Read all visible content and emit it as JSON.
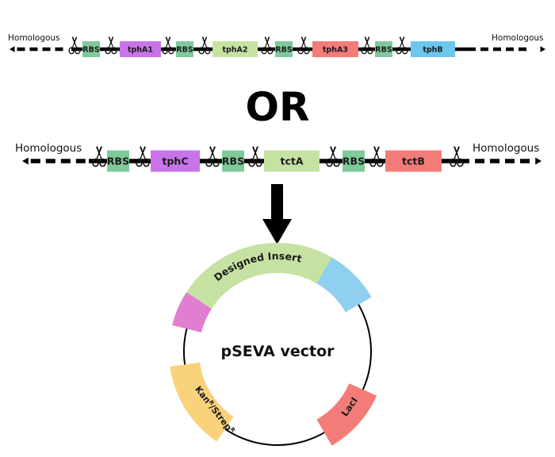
{
  "construct1": {
    "left_label": "Homologous",
    "right_label": "Homologous",
    "parts": [
      {
        "kind": "rbs",
        "label": "RBS",
        "color": "#7fc99a"
      },
      {
        "kind": "gene",
        "label": "tphA1",
        "color": "#c874e8"
      },
      {
        "kind": "rbs",
        "label": "RBS",
        "color": "#7fc99a"
      },
      {
        "kind": "gene",
        "label": "tphA2",
        "color": "#c6e2a2"
      },
      {
        "kind": "rbs",
        "label": "RBS",
        "color": "#7fc99a"
      },
      {
        "kind": "gene",
        "label": "tphA3",
        "color": "#f47c78"
      },
      {
        "kind": "rbs",
        "label": "RBS",
        "color": "#7fc99a"
      },
      {
        "kind": "gene",
        "label": "tphB",
        "color": "#6cc6ee"
      }
    ]
  },
  "or_text": "OR",
  "construct2": {
    "left_label": "Homologous",
    "right_label": "Homologous",
    "parts": [
      {
        "kind": "rbs",
        "label": "RBS",
        "color": "#7fc99a"
      },
      {
        "kind": "gene",
        "label": "tphC",
        "color": "#c874e8"
      },
      {
        "kind": "rbs",
        "label": "RBS",
        "color": "#7fc99a"
      },
      {
        "kind": "gene",
        "label": "tctA",
        "color": "#c6e2a2"
      },
      {
        "kind": "rbs",
        "label": "RBS",
        "color": "#7fc99a"
      },
      {
        "kind": "gene",
        "label": "tctB",
        "color": "#f47c78"
      }
    ]
  },
  "plasmid": {
    "center_label": "pSEVA vector",
    "segments": [
      {
        "label": "Designed Insert",
        "color": "#c6e2a2"
      },
      {
        "label": "",
        "color": "#8fd0f0"
      },
      {
        "label": "",
        "color": "#e07fcf"
      },
      {
        "label": "LacI",
        "color": "#f47c78"
      },
      {
        "label": "KanR/StrepR",
        "color": "#fbd27c"
      }
    ],
    "kan_label": {
      "kan": "Kan",
      "sup1": "R",
      "slash": "/Strep",
      "sup2": "R"
    }
  }
}
